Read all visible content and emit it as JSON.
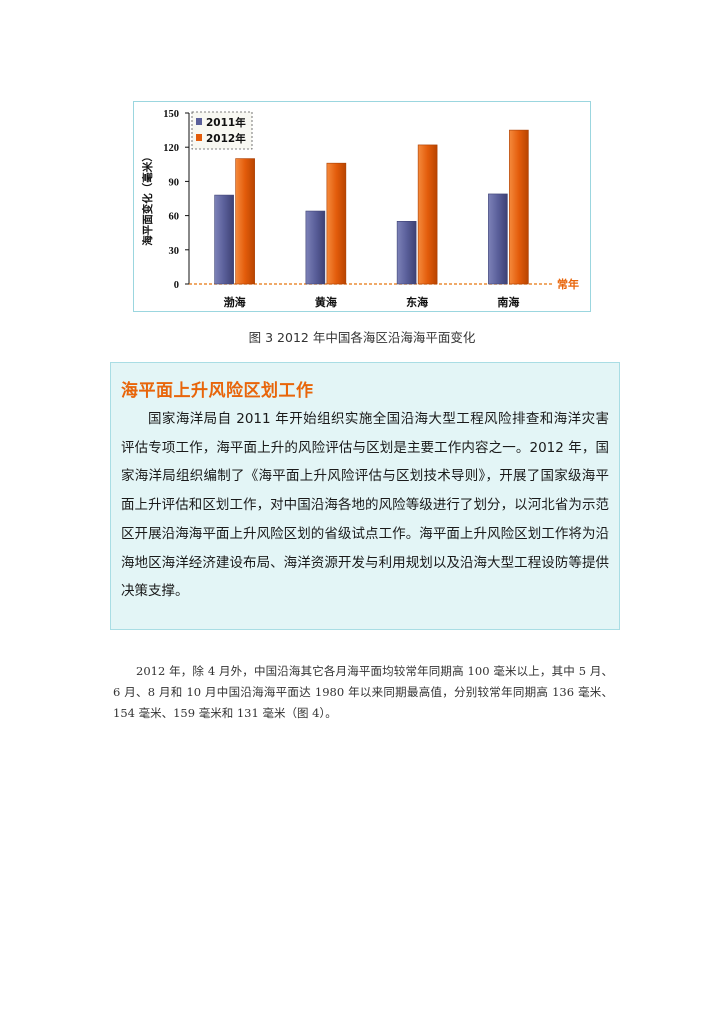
{
  "chart_data": {
    "type": "bar",
    "categories": [
      "渤海",
      "黄海",
      "东海",
      "南海"
    ],
    "series": [
      {
        "name": "2011年",
        "values": [
          78,
          64,
          55,
          79
        ],
        "color": "#5a5f9a"
      },
      {
        "name": "2012年",
        "values": [
          110,
          106,
          122,
          135
        ],
        "color": "#e35c0b"
      }
    ],
    "ylabel": "海平面变化（毫米）",
    "baseline_label": "常年",
    "yticks": [
      "0",
      "30",
      "60",
      "90",
      "120",
      "150"
    ],
    "ylim": [
      0,
      150
    ],
    "legend_position": "top-left",
    "grid": false
  },
  "figure": {
    "caption": "图 3 2012 年中国各海区沿海海平面变化"
  },
  "infobox": {
    "title": "海平面上升风险区划工作",
    "body": "国家海洋局自 2011 年开始组织实施全国沿海大型工程风险排查和海洋灾害评估专项工作，海平面上升的风险评估与区划是主要工作内容之一。2012 年，国家海洋局组织编制了《海平面上升风险评估与区划技术导则》，开展了国家级海平面上升评估和区划工作，对中国沿海各地的风险等级进行了划分，以河北省为示范区开展沿海海平面上升风险区划的省级试点工作。海平面上升风险区划工作将为沿海地区海洋经济建设布局、海洋资源开发与利用规划以及沿海大型工程设防等提供决策支撑。"
  },
  "paragraph": {
    "text": "2012 年，除 4 月外，中国沿海其它各月海平面均较常年同期高 100 毫米以上，其中 5 月、6 月、8 月和 10 月中国沿海海平面达 1980 年以来同期最高值，分别较常年同期高 136 毫米、154 毫米、159 毫米和 131 毫米（图 4）。"
  }
}
